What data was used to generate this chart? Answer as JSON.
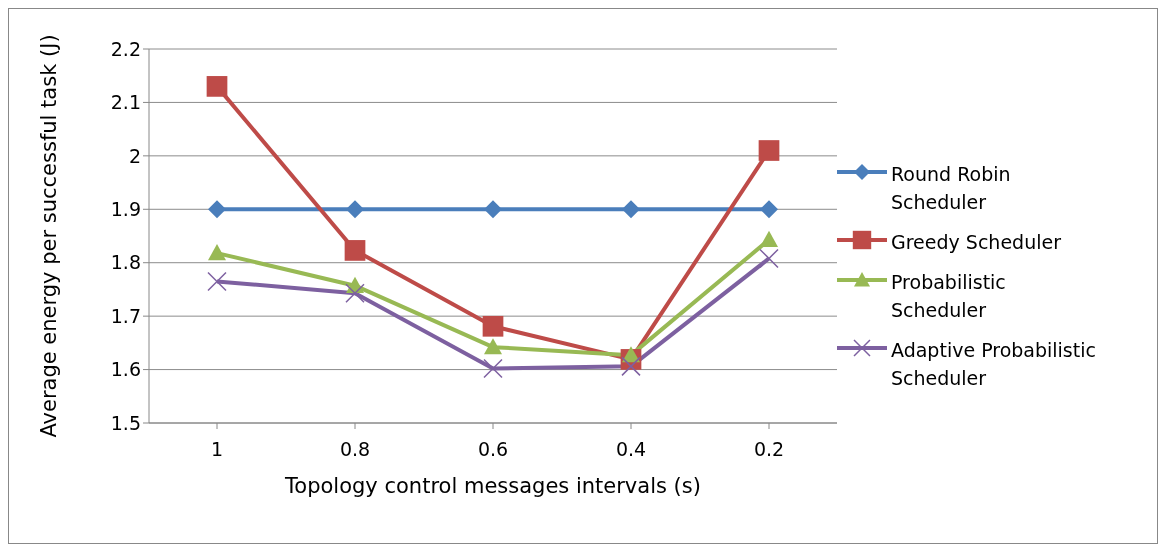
{
  "chart_data": {
    "type": "line",
    "xlabel": "Topology control messages intervals (s)",
    "ylabel": "Average energy per successful task (J)",
    "categories": [
      "1",
      "0.8",
      "0.6",
      "0.4",
      "0.2"
    ],
    "series": [
      {
        "name": "Round Robin Scheduler",
        "color": "#4a7ebb",
        "marker": "diamond",
        "values": [
          1.9,
          1.9,
          1.9,
          1.9,
          1.9
        ]
      },
      {
        "name": "Greedy Scheduler",
        "color": "#be4b48",
        "marker": "square",
        "values": [
          2.13,
          1.823,
          1.681,
          1.619,
          2.01
        ]
      },
      {
        "name": "Probabilistic Scheduler",
        "color": "#98b954",
        "marker": "triangle",
        "values": [
          1.818,
          1.757,
          1.642,
          1.627,
          1.843
        ]
      },
      {
        "name": "Adaptive Probabilistic Scheduler",
        "color": "#7d60a0",
        "marker": "cross",
        "values": [
          1.765,
          1.743,
          1.602,
          1.606,
          1.808
        ]
      }
    ],
    "ylim": [
      1.5,
      2.2
    ],
    "yticks": [
      1.5,
      1.6,
      1.7,
      1.8,
      1.9,
      2,
      2.1,
      2.2
    ],
    "grid": "y",
    "legend": "right",
    "line_style": "solid"
  }
}
